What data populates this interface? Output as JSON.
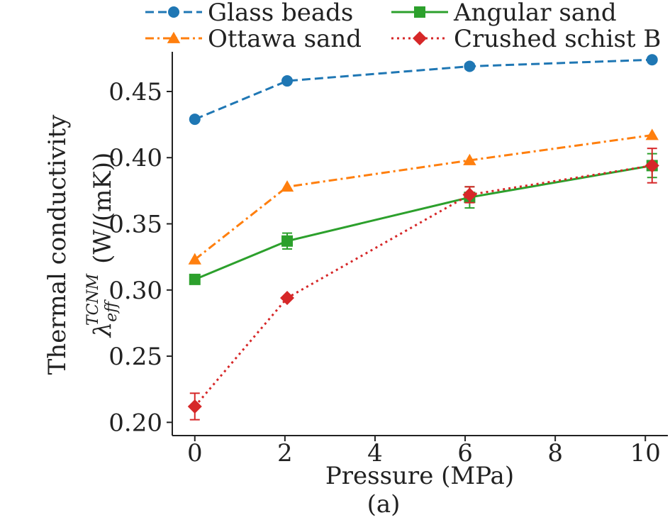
{
  "chart_data": {
    "type": "line",
    "xlabel": "Pressure (MPa)",
    "ylabel_line1": "Thermal conductivity",
    "ylabel_line2_symbol": "λ",
    "ylabel_line2_sub": "eff",
    "ylabel_line2_sup": "TCNM",
    "ylabel_line2_unit": "(W/(mK))",
    "caption": "(a)",
    "xlim": [
      -0.5,
      10.5
    ],
    "ylim": [
      0.19,
      0.48
    ],
    "x_ticks": [
      0,
      2,
      4,
      6,
      8,
      10
    ],
    "y_ticks": [
      0.2,
      0.25,
      0.3,
      0.35,
      0.4,
      0.45
    ],
    "x_tick_labels": [
      "0",
      "2",
      "4",
      "6",
      "8",
      "10"
    ],
    "y_tick_labels": [
      "0.20",
      "0.25",
      "0.30",
      "0.35",
      "0.40",
      "0.45"
    ],
    "grid": false,
    "legend_position": "top",
    "series": [
      {
        "name": "Glass beads",
        "color": "#1f77b4",
        "linestyle": "dashed",
        "marker": "circle",
        "points": [
          {
            "x": 0,
            "y": 0.429,
            "err": 0.0
          },
          {
            "x": 2.05,
            "y": 0.458,
            "err": 0.0
          },
          {
            "x": 6.1,
            "y": 0.469,
            "err": 0.002
          },
          {
            "x": 10.15,
            "y": 0.474,
            "err": 0.0
          }
        ]
      },
      {
        "name": "Angular sand",
        "color": "#2ca02c",
        "linestyle": "solid",
        "marker": "square",
        "points": [
          {
            "x": 0,
            "y": 0.308,
            "err": 0.003
          },
          {
            "x": 2.05,
            "y": 0.337,
            "err": 0.006
          },
          {
            "x": 6.1,
            "y": 0.37,
            "err": 0.008
          },
          {
            "x": 10.15,
            "y": 0.394,
            "err": 0.009
          }
        ]
      },
      {
        "name": "Ottawa sand",
        "color": "#ff7f0e",
        "linestyle": "dashdot",
        "marker": "triangle",
        "points": [
          {
            "x": 0,
            "y": 0.323,
            "err": 0.0
          },
          {
            "x": 2.05,
            "y": 0.378,
            "err": 0.0
          },
          {
            "x": 6.1,
            "y": 0.398,
            "err": 0.0
          },
          {
            "x": 10.15,
            "y": 0.417,
            "err": 0.0
          }
        ]
      },
      {
        "name": "Crushed schist B",
        "color": "#d62728",
        "linestyle": "dotted",
        "marker": "diamond",
        "points": [
          {
            "x": 0,
            "y": 0.212,
            "err": 0.01
          },
          {
            "x": 2.05,
            "y": 0.294,
            "err": 0.0
          },
          {
            "x": 6.1,
            "y": 0.372,
            "err": 0.006
          },
          {
            "x": 10.15,
            "y": 0.394,
            "err": 0.013
          }
        ]
      }
    ]
  }
}
